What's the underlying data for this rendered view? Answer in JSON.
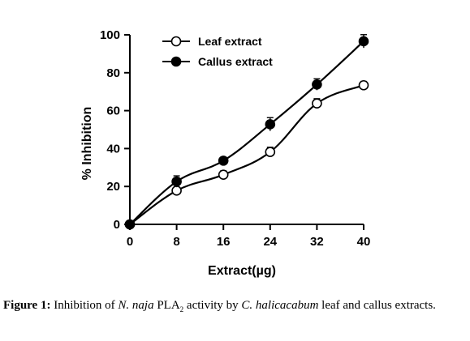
{
  "chart_data": {
    "type": "line",
    "xlabel": "Extract(µg)",
    "ylabel": "% Inhibition",
    "xlim": [
      0,
      40
    ],
    "ylim": [
      0,
      100
    ],
    "x_ticks": [
      "0",
      "8",
      "16",
      "24",
      "32",
      "40"
    ],
    "y_ticks": [
      "0",
      "20",
      "40",
      "60",
      "80",
      "100"
    ],
    "legend_position": "top-left",
    "grid": false,
    "series": [
      {
        "name": "Leaf extract",
        "marker": "open-circle",
        "color": "#000000",
        "x": [
          0,
          8,
          16,
          24,
          32,
          40
        ],
        "y": [
          0,
          17.8,
          26.2,
          38.2,
          63.8,
          73.4
        ],
        "error": [
          0,
          1.5,
          2,
          2.5,
          2.5,
          2
        ]
      },
      {
        "name": "Callus extract",
        "marker": "filled-circle",
        "color": "#000000",
        "x": [
          0,
          8,
          16,
          24,
          32,
          40
        ],
        "y": [
          0,
          22.6,
          33.6,
          52.8,
          73.8,
          96.6
        ],
        "error": [
          0,
          3,
          1.5,
          3.5,
          3,
          3.5
        ]
      }
    ]
  },
  "caption": {
    "label": "Figure 1:",
    "t1": " Inhibition of ",
    "organism": "N. naja",
    "enzyme": " PLA",
    "enzyme_sub": "2",
    "t2": " activity by ",
    "plant": "C. halicacabum",
    "t3": " leaf and callus extracts."
  }
}
